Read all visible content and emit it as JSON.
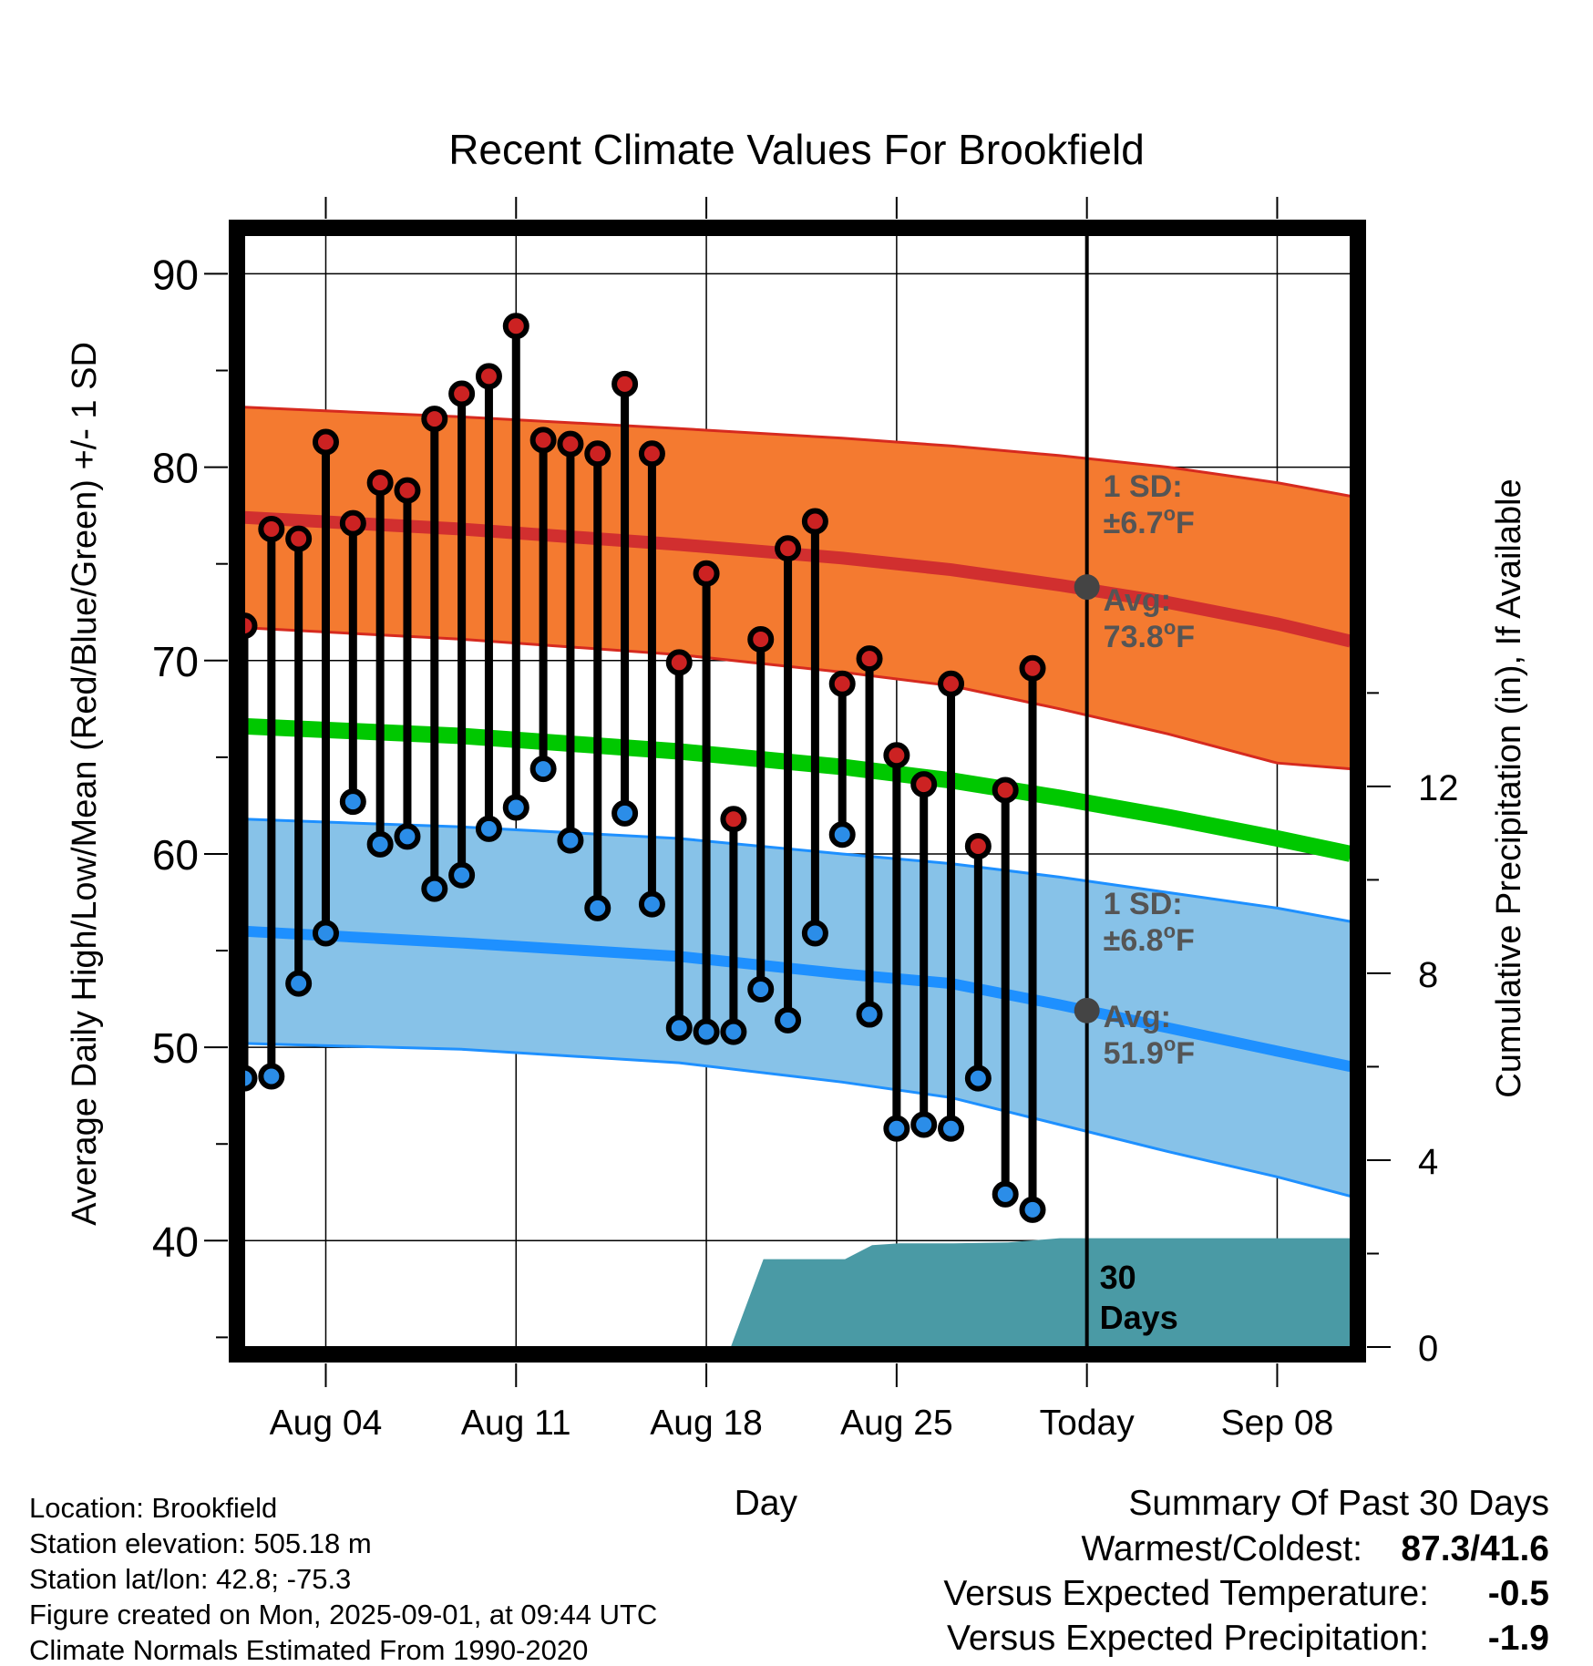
{
  "chart_data": {
    "type": "line",
    "title": "Recent Climate Values For Brookfield",
    "xlabel": "Day",
    "ylabel_left": "Average Daily High/Low/Mean (Red/Blue/Green) +/- 1 SD",
    "ylabel_right": "Cumulative Precipitation (in), If Available",
    "ylim_left": [
      34.5,
      92
    ],
    "yticks_left": [
      "90",
      "80",
      "70",
      "60",
      "50",
      "40"
    ],
    "ylim_right": [
      0,
      23.8
    ],
    "yticks_right": [
      "12",
      "8",
      "4",
      "0"
    ],
    "x_tick_labels": [
      {
        "day": 3,
        "label": "Aug 04"
      },
      {
        "day": 10,
        "label": "Aug 11"
      },
      {
        "day": 17,
        "label": "Aug 18"
      },
      {
        "day": 24,
        "label": "Aug 25"
      },
      {
        "day": 31,
        "label": "Today"
      },
      {
        "day": 38,
        "label": "Sep 08"
      }
    ],
    "x_range": [
      0,
      40.7
    ],
    "today_day": 31,
    "dates": [
      "Aug 01",
      "Aug 02",
      "Aug 03",
      "Aug 04",
      "Aug 05",
      "Aug 06",
      "Aug 07",
      "Aug 08",
      "Aug 09",
      "Aug 10",
      "Aug 11",
      "Aug 12",
      "Aug 13",
      "Aug 14",
      "Aug 15",
      "Aug 16",
      "Aug 17",
      "Aug 18",
      "Aug 19",
      "Aug 20",
      "Aug 21",
      "Aug 22",
      "Aug 23",
      "Aug 24",
      "Aug 25",
      "Aug 26",
      "Aug 27",
      "Aug 28",
      "Aug 29",
      "Aug 30",
      "Aug 31"
    ],
    "daily_high": [
      71.8,
      76.8,
      76.3,
      81.3,
      77.1,
      79.2,
      78.8,
      82.5,
      83.8,
      84.7,
      87.3,
      81.4,
      81.2,
      80.7,
      84.3,
      80.7,
      69.9,
      74.5,
      61.8,
      71.1,
      75.8,
      77.2,
      68.8,
      70.1,
      65.1,
      63.6,
      68.8,
      60.4,
      63.3,
      69.6
    ],
    "daily_low": [
      48.4,
      48.5,
      53.3,
      55.9,
      62.7,
      60.5,
      60.9,
      58.2,
      58.9,
      61.3,
      62.4,
      64.4,
      60.7,
      57.2,
      62.1,
      57.4,
      51.0,
      50.8,
      50.8,
      53.0,
      51.4,
      55.9,
      61.0,
      51.7,
      45.8,
      46.0,
      45.8,
      48.4,
      42.4,
      41.6
    ],
    "normal_high": {
      "days": [
        0,
        8,
        16,
        22,
        26,
        30,
        34,
        38,
        40.7
      ],
      "avg": [
        77.4,
        76.8,
        76.0,
        75.3,
        74.7,
        73.9,
        73.0,
        71.9,
        71.0
      ],
      "upper": [
        83.1,
        82.6,
        82.0,
        81.5,
        81.1,
        80.6,
        80.0,
        79.2,
        78.5
      ],
      "lower": [
        71.7,
        71.1,
        70.3,
        69.4,
        68.7,
        67.5,
        66.2,
        64.7,
        64.4
      ]
    },
    "normal_mean": {
      "days": [
        0,
        8,
        16,
        22,
        26,
        30,
        34,
        38,
        40.7
      ],
      "avg": [
        66.6,
        66.1,
        65.3,
        64.5,
        63.8,
        62.9,
        61.9,
        60.8,
        60.0
      ]
    },
    "normal_low": {
      "days": [
        0,
        8,
        16,
        22,
        26,
        30,
        34,
        38,
        40.7
      ],
      "avg": [
        56.0,
        55.4,
        54.7,
        53.8,
        53.3,
        52.2,
        51.0,
        49.8,
        49.0
      ],
      "upper": [
        61.8,
        61.4,
        60.8,
        60.0,
        59.5,
        58.8,
        58.0,
        57.2,
        56.5
      ],
      "lower": [
        50.2,
        49.9,
        49.2,
        48.2,
        47.4,
        46.0,
        44.6,
        43.3,
        42.3
      ]
    },
    "cumulative_precip": {
      "days": [
        17.9,
        19.1,
        20.0,
        21.2,
        22.1,
        23.1,
        24.1,
        25.1,
        26.1,
        27.1,
        28.1,
        30.0,
        31.0,
        40.7
      ],
      "values": [
        0,
        1.88,
        1.88,
        1.88,
        1.88,
        2.18,
        2.22,
        2.22,
        2.22,
        2.23,
        2.24,
        2.33,
        2.33,
        2.33
      ]
    },
    "annotations": {
      "high_sd_heading": "1 SD:",
      "high_sd": "±6.7",
      "high_avg_heading": "Avg:",
      "high_avg": "73.8",
      "low_sd_heading": "1 SD:",
      "low_sd": "±6.8",
      "low_avg_heading": "Avg:",
      "low_avg": "51.9",
      "deg_o": "o",
      "deg_f": "F",
      "days_number": "30",
      "days_word": "Days"
    },
    "colors": {
      "high_band": "#f47a30",
      "high_band_edge": "#d62a1f",
      "high_avg_line": "#d12f2f",
      "low_band": "#87c2e8",
      "low_band_edge": "#1e90ff",
      "low_avg_line": "#1e90ff",
      "mean_line": "#00c800",
      "precip_fill": "#4a9aa5",
      "high_marker": "#cc2222",
      "low_marker": "#2b8de8",
      "annotation_text": "#555555",
      "today_marker": "#444444"
    }
  },
  "info": {
    "location": "Location: Brookfield",
    "elevation": "Station elevation: 505.18 m",
    "latlon": "Station lat/lon: 42.8; -75.3",
    "created": "Figure created on Mon, 2025-09-01, at 09:44 UTC",
    "normals": "Climate Normals Estimated From 1990-2020"
  },
  "summary": {
    "heading": "Summary Of Past 30 Days",
    "warmest_coldest_label": "Warmest/Coldest:",
    "warmest_coldest_value": "87.3/41.6",
    "temp_label": "Versus Expected Temperature:",
    "temp_value": "-0.5",
    "temp_color": "#2b8de8",
    "precip_label": "Versus Expected Precipitation:",
    "precip_value": "-1.9",
    "precip_color": "#a0522d"
  }
}
